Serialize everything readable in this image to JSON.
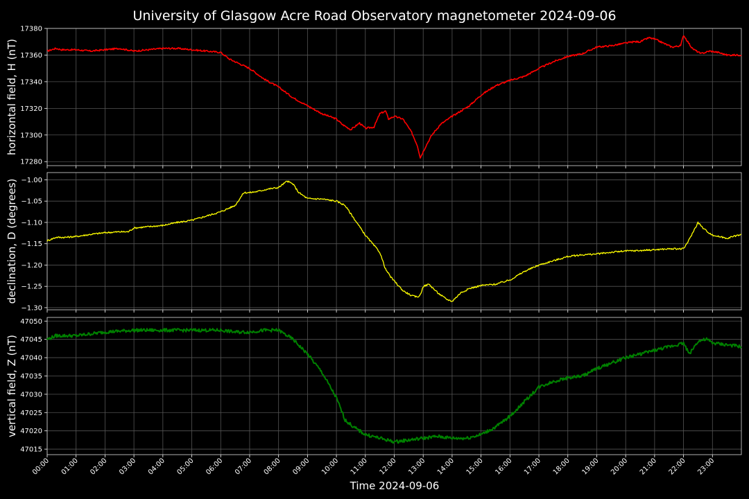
{
  "chart_data": {
    "type": "line",
    "title": "University of Glasgow Acre Road Observatory magnetometer 2024-09-06",
    "xlabel": "Time 2024-09-06",
    "x_ticks": [
      "00:00",
      "01:00",
      "02:00",
      "03:00",
      "04:00",
      "05:00",
      "06:00",
      "07:00",
      "08:00",
      "09:00",
      "10:00",
      "11:00",
      "12:00",
      "13:00",
      "14:00",
      "15:00",
      "16:00",
      "17:00",
      "18:00",
      "19:00",
      "20:00",
      "21:00",
      "22:00",
      "23:00"
    ],
    "xlim_hours": [
      0,
      24
    ],
    "grid": true,
    "panels": [
      {
        "name": "H",
        "ylabel": "horizontal field, H (nT)",
        "color": "#ff0000",
        "ylim": [
          17277,
          17380
        ],
        "y_ticks": [
          17280,
          17300,
          17320,
          17340,
          17360,
          17380
        ],
        "y_tick_labels": [
          "17280",
          "17300",
          "17320",
          "17340",
          "17360",
          "17380"
        ],
        "x_hours": [
          0,
          0.3,
          0.5,
          1,
          1.5,
          2,
          2.5,
          3,
          3.5,
          4,
          4.5,
          5,
          5.5,
          6,
          6.3,
          6.6,
          7,
          7.5,
          8,
          8.5,
          9,
          9.5,
          10,
          10.2,
          10.5,
          10.8,
          11,
          11.3,
          11.5,
          11.7,
          11.8,
          12,
          12.3,
          12.6,
          12.8,
          12.9,
          13.1,
          13.3,
          13.6,
          14,
          14.3,
          14.6,
          15,
          15.5,
          16,
          16.5,
          17,
          17.5,
          18,
          18.5,
          19,
          19.5,
          20,
          20.3,
          20.5,
          20.8,
          21,
          21.3,
          21.6,
          21.9,
          22,
          22.3,
          22.6,
          22.9,
          23.2,
          23.5,
          24
        ],
        "values": [
          17363,
          17365,
          17364,
          17364,
          17363,
          17364,
          17365,
          17363,
          17364,
          17365,
          17365,
          17364,
          17363,
          17362,
          17357,
          17354,
          17350,
          17342,
          17336,
          17328,
          17322,
          17316,
          17312,
          17308,
          17304,
          17309,
          17305,
          17306,
          17316,
          17318,
          17312,
          17314,
          17312,
          17302,
          17292,
          17283,
          17292,
          17300,
          17308,
          17314,
          17318,
          17322,
          17330,
          17337,
          17341,
          17344,
          17350,
          17355,
          17359,
          17361,
          17366,
          17367,
          17369,
          17370,
          17370,
          17373,
          17372,
          17369,
          17366,
          17367,
          17375,
          17365,
          17361,
          17363,
          17362,
          17360,
          17360
        ]
      },
      {
        "name": "D",
        "ylabel": "declination, D (degrees)",
        "color": "#ffff00",
        "ylim": [
          -1.305,
          -0.983
        ],
        "y_ticks": [
          -1.3,
          -1.25,
          -1.2,
          -1.15,
          -1.1,
          -1.05,
          -1.0
        ],
        "y_tick_labels": [
          "−1.30",
          "−1.25",
          "−1.20",
          "−1.15",
          "−1.10",
          "−1.05",
          "−1.00"
        ],
        "x_hours": [
          0,
          0.3,
          0.6,
          1,
          1.5,
          2,
          2.5,
          2.8,
          3,
          3.5,
          4,
          4.5,
          5,
          5.5,
          6,
          6.5,
          6.8,
          7,
          7.3,
          7.6,
          8,
          8.3,
          8.5,
          8.7,
          9,
          9.5,
          10,
          10.3,
          10.6,
          11,
          11.5,
          11.7,
          11.9,
          12.3,
          12.6,
          12.8,
          12.9,
          13,
          13.2,
          13.5,
          13.8,
          14,
          14.3,
          14.6,
          15,
          15.5,
          16,
          16.5,
          17,
          17.5,
          18,
          18.5,
          19,
          19.5,
          20,
          20.5,
          21,
          21.5,
          22,
          22.2,
          22.5,
          22.7,
          23,
          23.5,
          24
        ],
        "values": [
          -1.143,
          -1.135,
          -1.135,
          -1.133,
          -1.128,
          -1.124,
          -1.122,
          -1.122,
          -1.113,
          -1.11,
          -1.107,
          -1.1,
          -1.095,
          -1.085,
          -1.075,
          -1.06,
          -1.03,
          -1.03,
          -1.027,
          -1.022,
          -1.018,
          -1.003,
          -1.01,
          -1.03,
          -1.044,
          -1.045,
          -1.05,
          -1.06,
          -1.09,
          -1.13,
          -1.17,
          -1.21,
          -1.23,
          -1.26,
          -1.272,
          -1.275,
          -1.27,
          -1.25,
          -1.245,
          -1.265,
          -1.28,
          -1.285,
          -1.265,
          -1.255,
          -1.248,
          -1.245,
          -1.235,
          -1.215,
          -1.2,
          -1.19,
          -1.18,
          -1.176,
          -1.174,
          -1.17,
          -1.167,
          -1.166,
          -1.164,
          -1.162,
          -1.162,
          -1.14,
          -1.1,
          -1.115,
          -1.13,
          -1.137,
          -1.128
        ]
      },
      {
        "name": "Z",
        "ylabel": "vertical field, Z (nT)",
        "color": "#008000",
        "ylim": [
          47013.5,
          47051
        ],
        "y_ticks": [
          47015,
          47020,
          47025,
          47030,
          47035,
          47040,
          47045,
          47050
        ],
        "y_tick_labels": [
          "47015",
          "47020",
          "47025",
          "47030",
          "47035",
          "47040",
          "47045",
          "47050"
        ],
        "x_hours": [
          0,
          0.3,
          1,
          2,
          3,
          4,
          5,
          6,
          6.5,
          7,
          7.5,
          8,
          8.5,
          9,
          9.5,
          10,
          10.3,
          10.6,
          11,
          11.5,
          12,
          12.5,
          13,
          13.5,
          14,
          14.5,
          15,
          15.5,
          16,
          16.5,
          17,
          17.5,
          18,
          18.5,
          19,
          19.5,
          20,
          20.5,
          21,
          21.5,
          22,
          22.2,
          22.5,
          22.8,
          23,
          23.5,
          24
        ],
        "values": [
          47045,
          47046,
          47046,
          47047,
          47047.5,
          47047.5,
          47047.5,
          47047.5,
          47047,
          47047,
          47047.5,
          47047.5,
          47045,
          47041,
          47036,
          47029,
          47023,
          47021,
          47019,
          47018,
          47017,
          47017.5,
          47018,
          47018.5,
          47018,
          47018,
          47019,
          47021,
          47024,
          47028,
          47032,
          47033.5,
          47034.5,
          47035,
          47037,
          47038.5,
          47040,
          47041,
          47042,
          47043,
          47044,
          47041,
          47044.5,
          47045,
          47044,
          47043.5,
          47043
        ]
      }
    ]
  }
}
